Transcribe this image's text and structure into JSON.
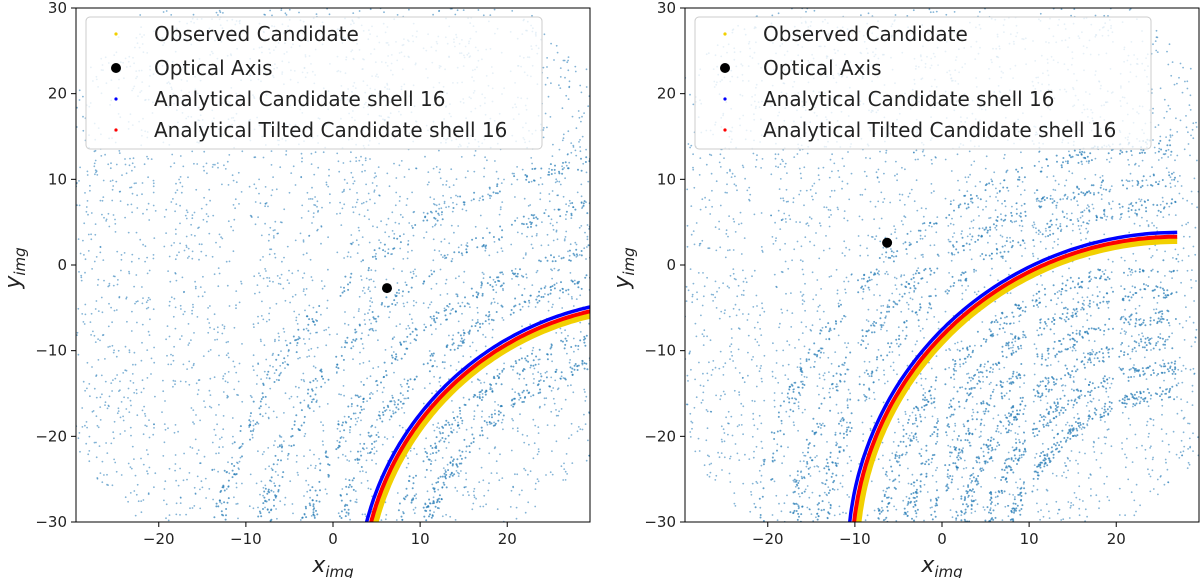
{
  "chart_data": [
    {
      "type": "scatter",
      "xlabel": "x_img",
      "ylabel": "y_img",
      "xlabel_main": "x",
      "xlabel_sub": "img",
      "ylabel_main": "y",
      "ylabel_sub": "img",
      "xlim": [
        -29.5,
        29.5
      ],
      "ylim": [
        -30,
        30
      ],
      "xticks": [
        -20,
        -10,
        0,
        10,
        20
      ],
      "yticks": [
        -30,
        -20,
        -10,
        0,
        10,
        20,
        30
      ],
      "legend_position": "top-left",
      "legend": [
        {
          "label": "Observed Candidate",
          "color": "#f2d000",
          "marker": "small-dot"
        },
        {
          "label": "Optical Axis",
          "color": "#000000",
          "marker": "dot"
        },
        {
          "label": "Analytical Candidate shell 16",
          "color": "#0000ff",
          "marker": "small-dot"
        },
        {
          "label": "Analytical Tilted Candidate shell 16",
          "color": "#ff0000",
          "marker": "small-dot"
        }
      ],
      "optical_axis": {
        "x": 6.2,
        "y": -2.7
      },
      "candidate_arc": {
        "center": [
          37.3,
          -38.5
        ],
        "radius": 34.5,
        "tilted_offset": -0.5,
        "observed_offset": -1.0
      },
      "background_arcs": [
        {
          "center": [
            37.3,
            -38.5
          ],
          "radius": 46
        },
        {
          "center": [
            37.3,
            -38.5
          ],
          "radius": 41
        },
        {
          "center": [
            37.3,
            -38.5
          ],
          "radius": 37.5
        },
        {
          "center": [
            37.3,
            -38.5
          ],
          "radius": 31
        },
        {
          "center": [
            37.3,
            -38.5
          ],
          "radius": 28
        },
        {
          "center": [
            37.3,
            -38.5
          ],
          "radius": 51
        }
      ],
      "colors": {
        "background_points": "#1f77b4"
      }
    },
    {
      "type": "scatter",
      "xlabel": "x_img",
      "ylabel": "y_img",
      "xlabel_main": "x",
      "xlabel_sub": "img",
      "ylabel_main": "y",
      "ylabel_sub": "img",
      "xlim": [
        -29.5,
        29.5
      ],
      "ylim": [
        -30,
        30
      ],
      "xticks": [
        -20,
        -10,
        0,
        10,
        20
      ],
      "yticks": [
        -30,
        -20,
        -10,
        0,
        10,
        20,
        30
      ],
      "legend_position": "top-left",
      "legend": [
        {
          "label": "Observed Candidate",
          "color": "#f2d000",
          "marker": "small-dot"
        },
        {
          "label": "Optical Axis",
          "color": "#000000",
          "marker": "dot"
        },
        {
          "label": "Analytical Candidate shell 16",
          "color": "#0000ff",
          "marker": "small-dot"
        },
        {
          "label": "Analytical Tilted Candidate shell 16",
          "color": "#ff0000",
          "marker": "small-dot"
        }
      ],
      "optical_axis": {
        "x": -6.3,
        "y": 2.6
      },
      "candidate_arc": {
        "center": [
          27,
          -34
        ],
        "radius": 37.8,
        "tilted_offset": -0.5,
        "observed_offset": -1.0
      },
      "background_arcs": [
        {
          "center": [
            27,
            -34
          ],
          "radius": 44
        },
        {
          "center": [
            27,
            -34
          ],
          "radius": 41
        },
        {
          "center": [
            27,
            -34
          ],
          "radius": 34
        },
        {
          "center": [
            27,
            -34
          ],
          "radius": 31
        },
        {
          "center": [
            27,
            -34
          ],
          "radius": 28
        },
        {
          "center": [
            27,
            -34
          ],
          "radius": 25
        },
        {
          "center": [
            27,
            -34
          ],
          "radius": 22
        },
        {
          "center": [
            27,
            -34
          ],
          "radius": 19
        },
        {
          "center": [
            27,
            -34
          ],
          "radius": 48
        }
      ],
      "colors": {
        "background_points": "#1f77b4"
      }
    }
  ]
}
